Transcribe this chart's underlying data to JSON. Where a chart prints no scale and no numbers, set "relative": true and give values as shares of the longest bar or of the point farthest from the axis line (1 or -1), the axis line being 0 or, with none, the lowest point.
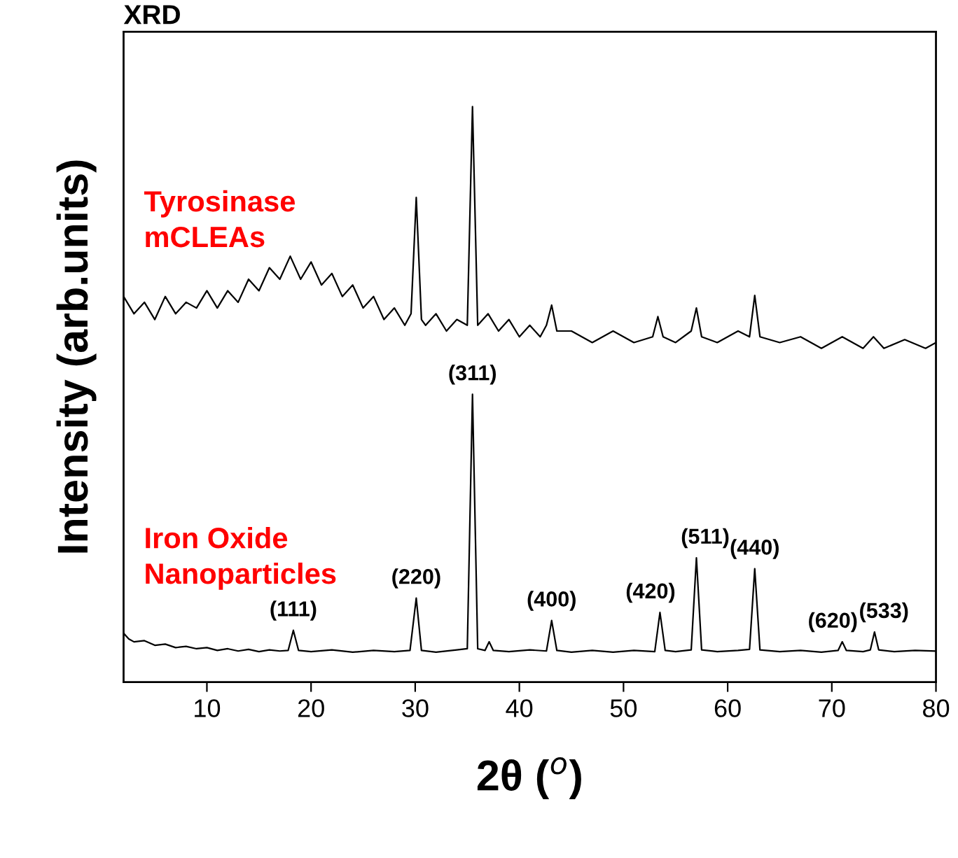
{
  "chart_data": {
    "type": "line",
    "title": "XRD",
    "xlabel": "2θ ($^{o}$)",
    "ylabel": "Intensity (arb.units)",
    "relative": true,
    "xlim": [
      2,
      80
    ],
    "xticks": [
      10,
      20,
      30,
      40,
      50,
      60,
      70,
      80
    ],
    "tick_labels": "x",
    "series": [
      {
        "name": "Tyrosinase\nmCLEAs",
        "color": "#000000",
        "x": [
          2,
          3,
          4,
          5,
          6,
          7,
          8,
          9,
          10,
          11,
          12,
          13,
          14,
          15,
          16,
          17,
          18,
          19,
          20,
          21,
          22,
          23,
          24,
          25,
          26,
          27,
          28,
          29,
          29.6,
          30.1,
          30.6,
          31,
          32,
          33,
          34,
          35,
          35.5,
          36,
          37,
          38,
          39,
          40,
          41,
          42,
          42.6,
          43.1,
          43.6,
          45,
          47,
          49,
          51,
          52.8,
          53.3,
          53.8,
          55,
          56.5,
          57.0,
          57.5,
          59,
          61,
          62.1,
          62.6,
          63.1,
          65,
          67,
          69,
          71,
          73,
          74,
          75,
          77,
          79,
          80
        ],
        "values": [
          0.67,
          0.64,
          0.66,
          0.63,
          0.67,
          0.64,
          0.66,
          0.65,
          0.68,
          0.65,
          0.68,
          0.66,
          0.7,
          0.68,
          0.72,
          0.7,
          0.74,
          0.7,
          0.73,
          0.69,
          0.71,
          0.67,
          0.69,
          0.65,
          0.67,
          0.63,
          0.65,
          0.62,
          0.64,
          0.842,
          0.63,
          0.62,
          0.64,
          0.61,
          0.63,
          0.62,
          1.0,
          0.62,
          0.64,
          0.61,
          0.63,
          0.6,
          0.62,
          0.6,
          0.62,
          0.655,
          0.61,
          0.61,
          0.59,
          0.61,
          0.59,
          0.6,
          0.635,
          0.6,
          0.59,
          0.61,
          0.65,
          0.6,
          0.59,
          0.61,
          0.6,
          0.672,
          0.6,
          0.59,
          0.6,
          0.58,
          0.6,
          0.58,
          0.6,
          0.58,
          0.595,
          0.58,
          0.59
        ]
      },
      {
        "name": "Iron Oxide\nNanoparticles",
        "color": "#000000",
        "x": [
          2,
          2.5,
          3,
          4,
          5,
          6,
          7,
          8,
          9,
          10,
          11,
          12,
          13,
          14,
          15,
          16,
          17,
          17.8,
          18.3,
          18.8,
          20,
          22,
          24,
          26,
          28,
          29.5,
          30.1,
          30.6,
          32,
          34,
          35,
          35.5,
          36,
          36.7,
          37.1,
          37.5,
          39,
          41,
          42.6,
          43.1,
          43.6,
          45,
          47,
          49,
          51,
          53,
          53.5,
          54,
          55,
          56.5,
          57.0,
          57.5,
          59,
          61,
          62.1,
          62.6,
          63.1,
          65,
          67,
          69,
          70.6,
          71.0,
          71.4,
          73,
          73.7,
          74.1,
          74.5,
          76,
          78,
          80
        ],
        "values": [
          0.085,
          0.075,
          0.07,
          0.072,
          0.064,
          0.066,
          0.06,
          0.062,
          0.058,
          0.06,
          0.055,
          0.058,
          0.054,
          0.057,
          0.053,
          0.056,
          0.054,
          0.055,
          0.09,
          0.055,
          0.053,
          0.056,
          0.052,
          0.055,
          0.053,
          0.055,
          0.146,
          0.055,
          0.052,
          0.056,
          0.058,
          0.5,
          0.058,
          0.055,
          0.07,
          0.055,
          0.053,
          0.056,
          0.054,
          0.107,
          0.055,
          0.052,
          0.055,
          0.052,
          0.055,
          0.053,
          0.121,
          0.055,
          0.053,
          0.056,
          0.216,
          0.056,
          0.053,
          0.055,
          0.057,
          0.197,
          0.056,
          0.053,
          0.055,
          0.052,
          0.055,
          0.07,
          0.055,
          0.053,
          0.056,
          0.087,
          0.056,
          0.053,
          0.055,
          0.054
        ]
      }
    ],
    "annotations": [
      {
        "text": "(111)",
        "x": 18.3,
        "y": 0.09
      },
      {
        "text": "(220)",
        "x": 30.1,
        "y": 0.146
      },
      {
        "text": "(311)",
        "x": 35.5,
        "y": 0.5
      },
      {
        "text": "(400)",
        "x": 43.1,
        "y": 0.107
      },
      {
        "text": "(420)",
        "x": 53.5,
        "y": 0.121
      },
      {
        "text": "(511)",
        "x": 57.0,
        "y": 0.216
      },
      {
        "text": "(440)",
        "x": 62.6,
        "y": 0.197
      },
      {
        "text": "(620)",
        "x": 71.0,
        "y": 0.07
      },
      {
        "text": "(533)",
        "x": 74.1,
        "y": 0.087
      }
    ]
  }
}
